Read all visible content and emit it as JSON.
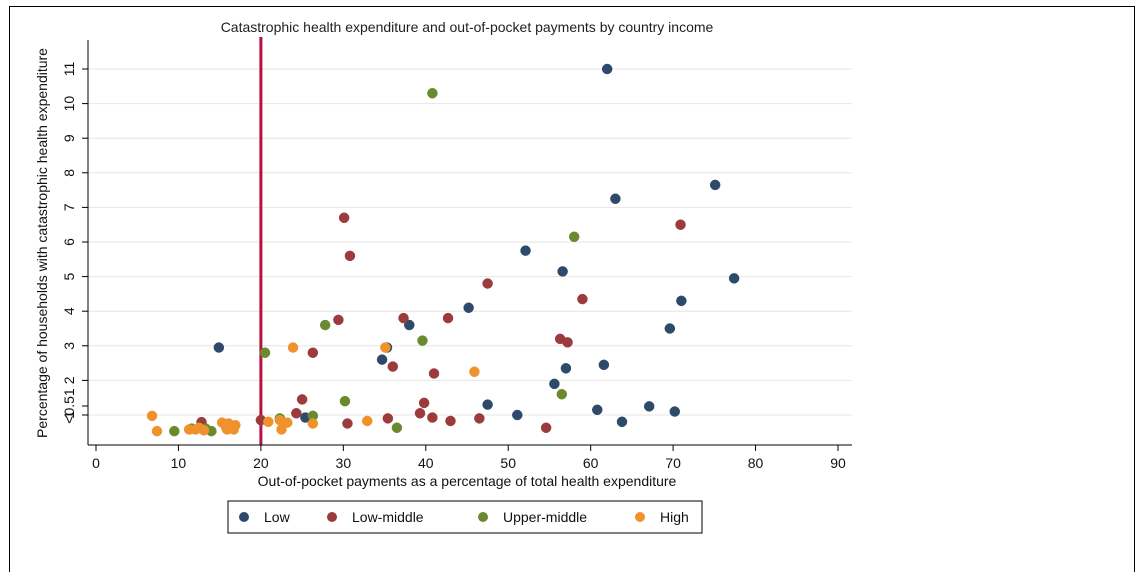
{
  "chart_data": {
    "type": "scatter",
    "title": "Catastrophic health expenditure and out-of-pocket payments by country income",
    "xlabel": "Out-of-pocket payments as a percentage of total health expenditure",
    "ylabel": "Percentage of households with catastrophic health expenditure",
    "xlim": [
      0,
      90
    ],
    "x_ticks": [
      "0",
      "10",
      "20",
      "30",
      "40",
      "50",
      "60",
      "70",
      "80",
      "90"
    ],
    "y_ticks": [
      "<0.51",
      "1",
      "2",
      "3",
      "4",
      "5",
      "6",
      "7",
      "8",
      "9",
      "10",
      "11"
    ],
    "reference_line": {
      "x": 20,
      "color": "#b5123e"
    },
    "legend_position": "bottom",
    "grid": true,
    "series": [
      {
        "name": "Low",
        "color": "#2d4a6b",
        "points": [
          {
            "x": 62.0,
            "y": 11.0
          },
          {
            "x": 75.1,
            "y": 7.65
          },
          {
            "x": 63.0,
            "y": 7.25
          },
          {
            "x": 52.1,
            "y": 5.75
          },
          {
            "x": 56.6,
            "y": 5.15
          },
          {
            "x": 77.4,
            "y": 4.95
          },
          {
            "x": 71.0,
            "y": 4.3
          },
          {
            "x": 45.2,
            "y": 4.1
          },
          {
            "x": 38.0,
            "y": 3.6
          },
          {
            "x": 69.6,
            "y": 3.5
          },
          {
            "x": 14.9,
            "y": 2.95
          },
          {
            "x": 35.3,
            "y": 2.95
          },
          {
            "x": 34.7,
            "y": 2.6
          },
          {
            "x": 61.6,
            "y": 2.45
          },
          {
            "x": 57.0,
            "y": 2.35
          },
          {
            "x": 55.6,
            "y": 1.9
          },
          {
            "x": 47.5,
            "y": 1.3
          },
          {
            "x": 67.1,
            "y": 1.25
          },
          {
            "x": 60.8,
            "y": 1.15
          },
          {
            "x": 70.2,
            "y": 1.1
          },
          {
            "x": 51.1,
            "y": 1.0
          },
          {
            "x": 25.4,
            "y": 0.85
          },
          {
            "x": 63.8,
            "y": 0.6
          }
        ]
      },
      {
        "name": "Low-middle",
        "color": "#9c3b3b",
        "points": [
          {
            "x": 30.1,
            "y": 6.7
          },
          {
            "x": 70.9,
            "y": 6.5
          },
          {
            "x": 30.8,
            "y": 5.6
          },
          {
            "x": 47.5,
            "y": 4.8
          },
          {
            "x": 59.0,
            "y": 4.35
          },
          {
            "x": 29.4,
            "y": 3.75
          },
          {
            "x": 37.3,
            "y": 3.8
          },
          {
            "x": 42.7,
            "y": 3.8
          },
          {
            "x": 56.3,
            "y": 3.2
          },
          {
            "x": 57.2,
            "y": 3.1
          },
          {
            "x": 26.3,
            "y": 2.8
          },
          {
            "x": 36.0,
            "y": 2.4
          },
          {
            "x": 41.0,
            "y": 2.2
          },
          {
            "x": 25.0,
            "y": 1.45
          },
          {
            "x": 39.8,
            "y": 1.35
          },
          {
            "x": 39.3,
            "y": 1.05
          },
          {
            "x": 24.3,
            "y": 1.05
          },
          {
            "x": 40.8,
            "y": 0.85
          },
          {
            "x": 46.5,
            "y": 0.8
          },
          {
            "x": 35.4,
            "y": 0.8
          },
          {
            "x": 20.0,
            "y": 0.7
          },
          {
            "x": 12.8,
            "y": 0.58
          },
          {
            "x": 43.0,
            "y": 0.65
          },
          {
            "x": 30.5,
            "y": 0.5
          },
          {
            "x": 54.6,
            "y": 0.25
          }
        ]
      },
      {
        "name": "Upper-middle",
        "color": "#6b8a2f",
        "points": [
          {
            "x": 40.8,
            "y": 10.3
          },
          {
            "x": 58.0,
            "y": 6.15
          },
          {
            "x": 27.8,
            "y": 3.6
          },
          {
            "x": 39.6,
            "y": 3.15
          },
          {
            "x": 20.5,
            "y": 2.8
          },
          {
            "x": 56.5,
            "y": 1.6
          },
          {
            "x": 30.2,
            "y": 1.4
          },
          {
            "x": 26.3,
            "y": 0.95
          },
          {
            "x": 22.3,
            "y": 0.8
          },
          {
            "x": 36.5,
            "y": 0.25
          },
          {
            "x": 11.6,
            "y": 0.2
          },
          {
            "x": 13.3,
            "y": 0.2
          },
          {
            "x": 9.5,
            "y": 0.05
          },
          {
            "x": 14.0,
            "y": 0.05
          }
        ]
      },
      {
        "name": "High",
        "color": "#f0922b",
        "points": [
          {
            "x": 6.8,
            "y": 0.95
          },
          {
            "x": 23.9,
            "y": 2.95
          },
          {
            "x": 35.1,
            "y": 2.95
          },
          {
            "x": 45.9,
            "y": 2.25
          },
          {
            "x": 32.9,
            "y": 0.65
          },
          {
            "x": 22.3,
            "y": 0.7
          },
          {
            "x": 20.9,
            "y": 0.6
          },
          {
            "x": 23.2,
            "y": 0.55
          },
          {
            "x": 26.3,
            "y": 0.5
          },
          {
            "x": 15.3,
            "y": 0.55
          },
          {
            "x": 16.1,
            "y": 0.5
          },
          {
            "x": 16.9,
            "y": 0.4
          },
          {
            "x": 12.5,
            "y": 0.25
          },
          {
            "x": 15.8,
            "y": 0.25
          },
          {
            "x": 11.3,
            "y": 0.15
          },
          {
            "x": 12.1,
            "y": 0.15
          },
          {
            "x": 13.1,
            "y": 0.1
          },
          {
            "x": 15.9,
            "y": 0.15
          },
          {
            "x": 16.7,
            "y": 0.15
          },
          {
            "x": 22.5,
            "y": 0.15
          },
          {
            "x": 7.4,
            "y": 0.05
          }
        ]
      }
    ]
  }
}
